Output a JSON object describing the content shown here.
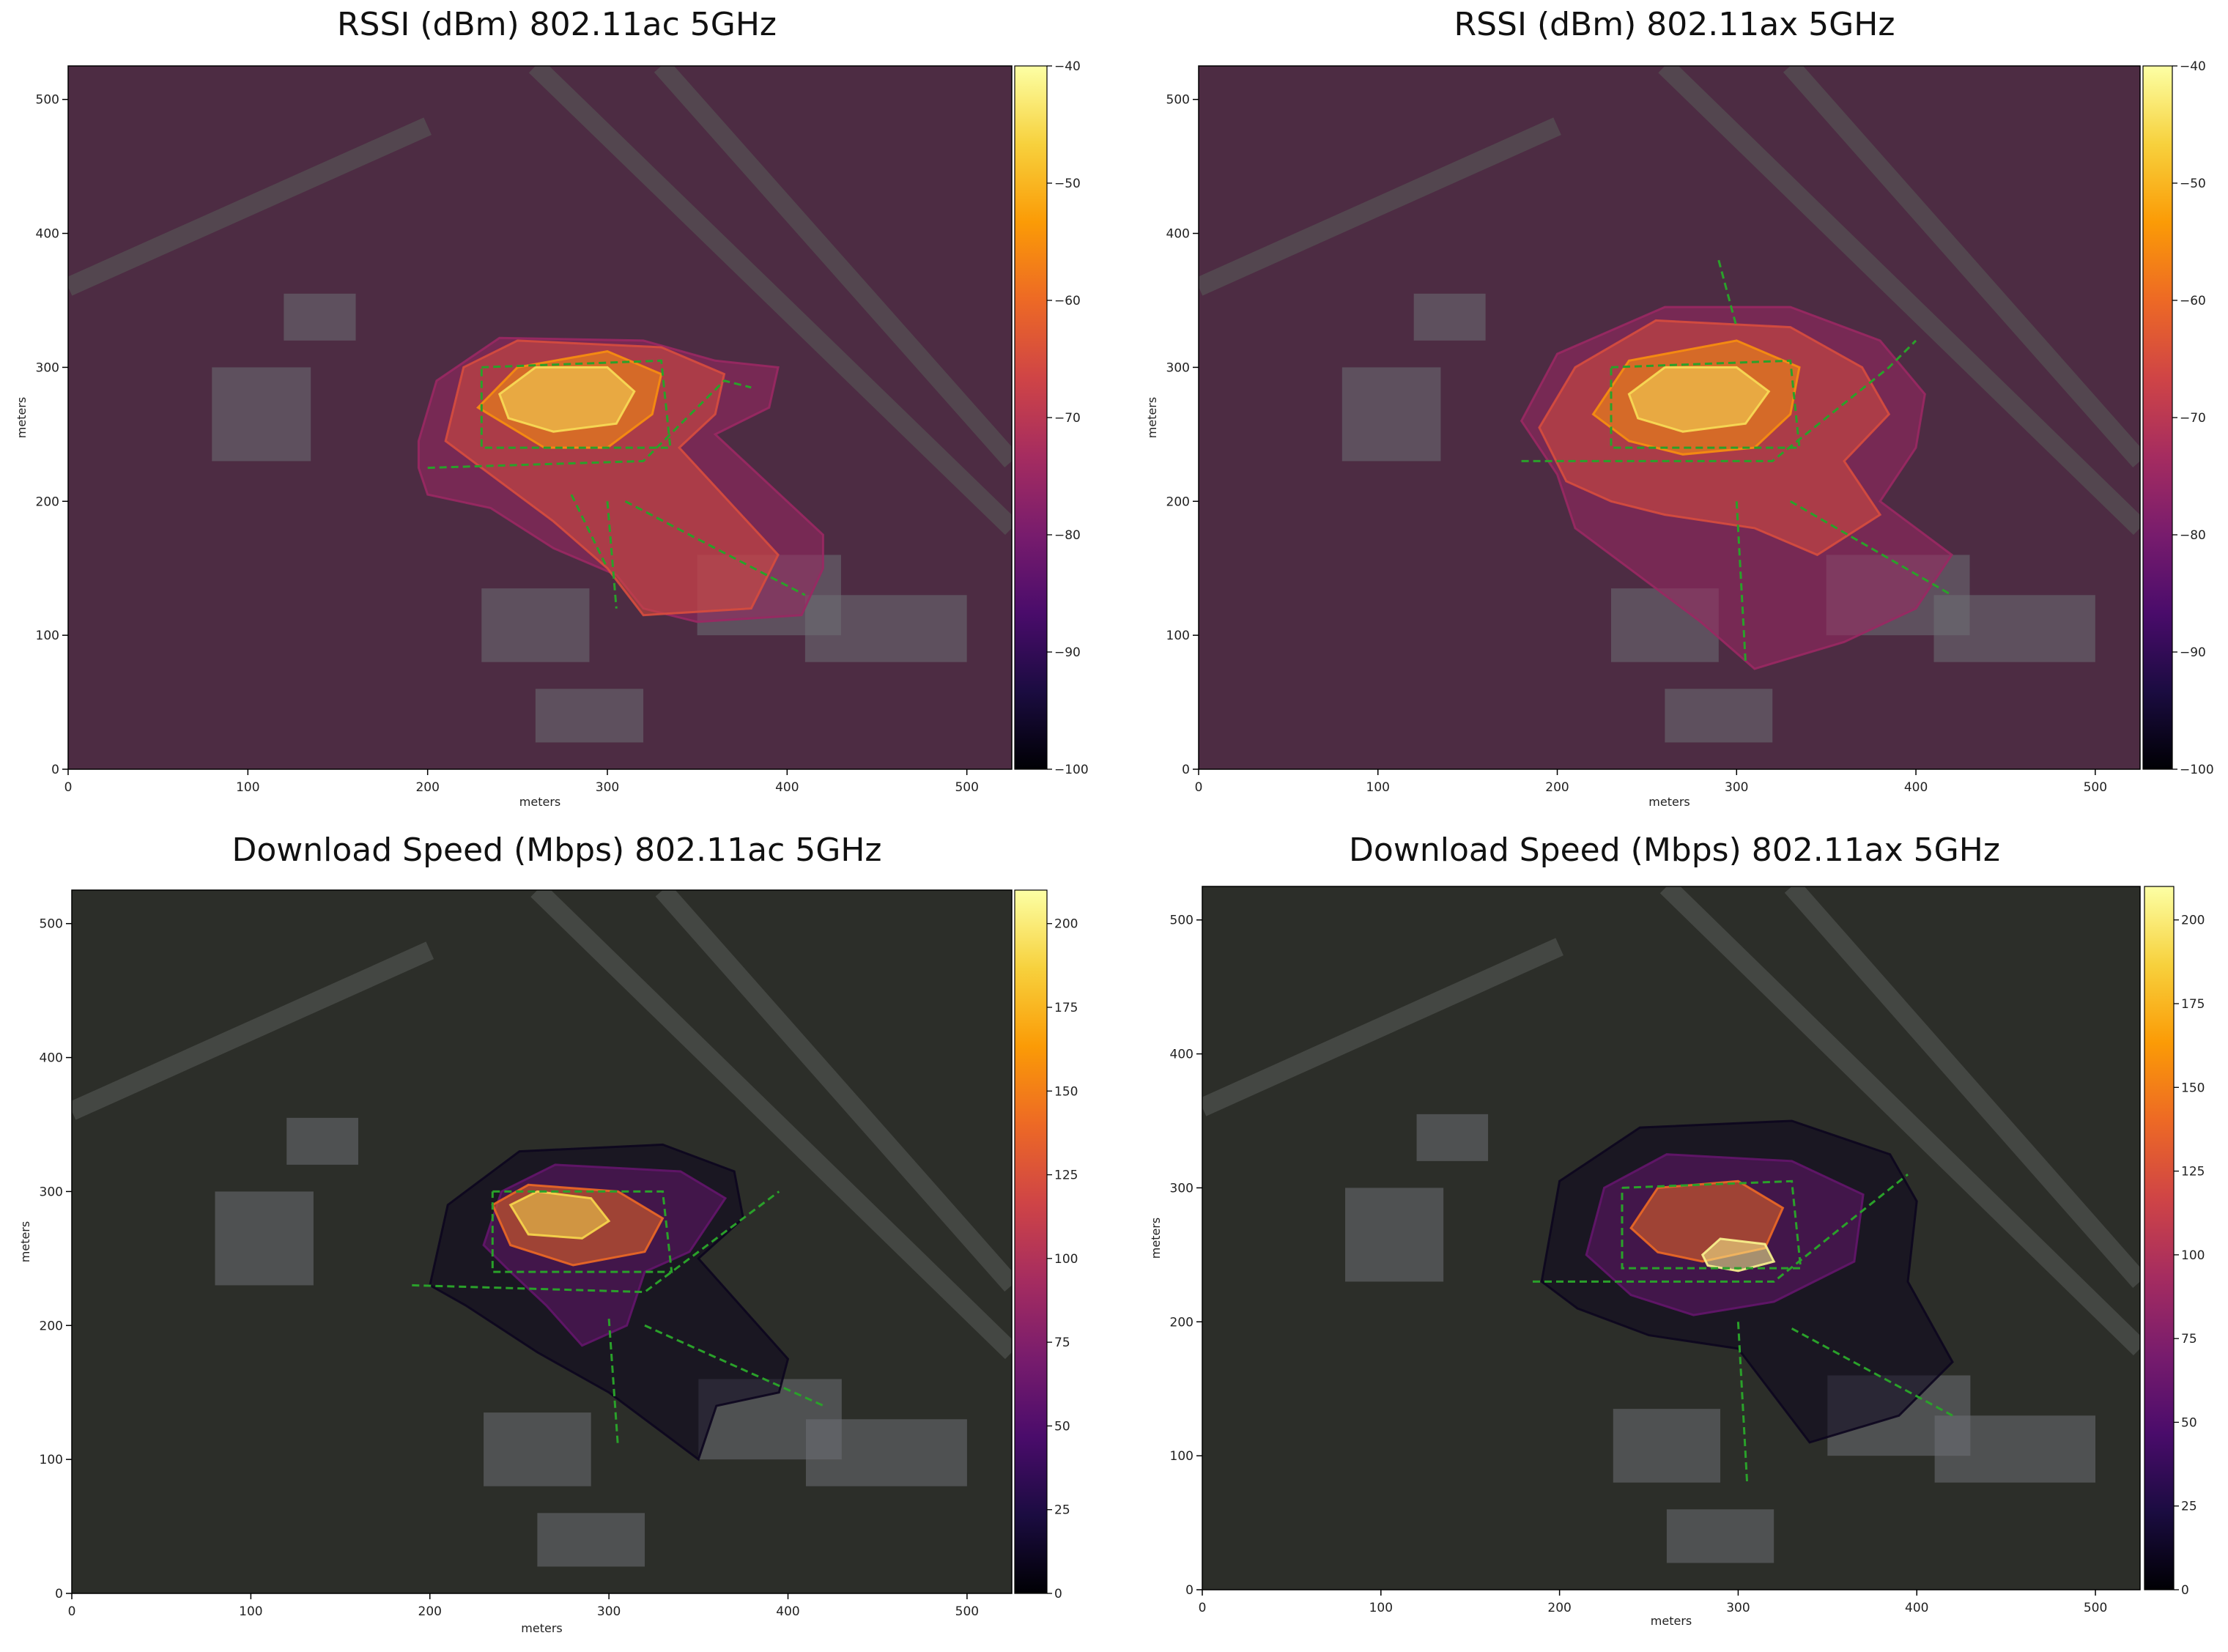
{
  "colors": {
    "colormap_stops": [
      "#000004",
      "#1b0c41",
      "#4a0c6b",
      "#781c6d",
      "#a52c60",
      "#cf4446",
      "#ed6925",
      "#fb9b06",
      "#f7d13d",
      "#fcffa4"
    ],
    "background_map": "#33352f",
    "measurement_path": "#2aa12a"
  },
  "chart_data": [
    {
      "type": "heatmap",
      "title": "RSSI (dBm) 802.11ac 5GHz",
      "xlabel": "meters",
      "ylabel": "meters",
      "xlim": [
        0,
        525
      ],
      "ylim": [
        0,
        525
      ],
      "x_ticks": [
        0,
        100,
        200,
        300,
        400,
        500
      ],
      "y_ticks": [
        0,
        100,
        200,
        300,
        400,
        500
      ],
      "colorbar": {
        "range": [
          -100,
          -40
        ],
        "ticks": [
          -40,
          -50,
          -60,
          -70,
          -80,
          -90,
          -100
        ]
      },
      "contours": [
        {
          "level": -75,
          "polygon": [
            [
              195,
              245
            ],
            [
              205,
              290
            ],
            [
              240,
              322
            ],
            [
              320,
              320
            ],
            [
              360,
              305
            ],
            [
              395,
              300
            ],
            [
              390,
              270
            ],
            [
              360,
              250
            ],
            [
              420,
              175
            ],
            [
              420,
              150
            ],
            [
              408,
              115
            ],
            [
              350,
              110
            ],
            [
              320,
              120
            ],
            [
              305,
              145
            ],
            [
              270,
              165
            ],
            [
              235,
              195
            ],
            [
              200,
              205
            ],
            [
              195,
              225
            ]
          ]
        },
        {
          "level": -65,
          "polygon": [
            [
              210,
              245
            ],
            [
              220,
              300
            ],
            [
              250,
              320
            ],
            [
              330,
              315
            ],
            [
              365,
              295
            ],
            [
              360,
              265
            ],
            [
              340,
              240
            ],
            [
              395,
              160
            ],
            [
              380,
              120
            ],
            [
              320,
              115
            ],
            [
              300,
              150
            ],
            [
              270,
              185
            ],
            [
              240,
              215
            ]
          ]
        },
        {
          "level": -55,
          "polygon": [
            [
              228,
              270
            ],
            [
              250,
              300
            ],
            [
              300,
              312
            ],
            [
              330,
              295
            ],
            [
              325,
              265
            ],
            [
              300,
              240
            ],
            [
              265,
              240
            ]
          ]
        },
        {
          "level": -45,
          "polygon": [
            [
              240,
              280
            ],
            [
              260,
              300
            ],
            [
              300,
              300
            ],
            [
              315,
              282
            ],
            [
              305,
              258
            ],
            [
              270,
              252
            ],
            [
              245,
              262
            ]
          ]
        }
      ],
      "paths": [
        [
          [
            230,
            300
          ],
          [
            330,
            305
          ],
          [
            335,
            240
          ],
          [
            230,
            240
          ],
          [
            230,
            300
          ]
        ],
        [
          [
            200,
            225
          ],
          [
            320,
            230
          ],
          [
            365,
            290
          ],
          [
            380,
            285
          ]
        ],
        [
          [
            300,
            200
          ],
          [
            305,
            120
          ]
        ],
        [
          [
            310,
            200
          ],
          [
            410,
            130
          ]
        ],
        [
          [
            280,
            205
          ],
          [
            300,
            150
          ]
        ]
      ]
    },
    {
      "type": "heatmap",
      "title": "RSSI (dBm) 802.11ax 5GHz",
      "xlabel": "meters",
      "ylabel": "meters",
      "xlim": [
        0,
        525
      ],
      "ylim": [
        0,
        525
      ],
      "x_ticks": [
        0,
        100,
        200,
        300,
        400,
        500
      ],
      "y_ticks": [
        0,
        100,
        200,
        300,
        400,
        500
      ],
      "colorbar": {
        "range": [
          -100,
          -40
        ],
        "ticks": [
          -40,
          -50,
          -60,
          -70,
          -80,
          -90,
          -100
        ]
      },
      "contours": [
        {
          "level": -75,
          "polygon": [
            [
              180,
              260
            ],
            [
              200,
              310
            ],
            [
              260,
              345
            ],
            [
              330,
              345
            ],
            [
              380,
              320
            ],
            [
              405,
              280
            ],
            [
              400,
              240
            ],
            [
              380,
              200
            ],
            [
              420,
              160
            ],
            [
              400,
              120
            ],
            [
              360,
              95
            ],
            [
              310,
              75
            ],
            [
              280,
              110
            ],
            [
              240,
              150
            ],
            [
              210,
              180
            ],
            [
              200,
              220
            ]
          ]
        },
        {
          "level": -65,
          "polygon": [
            [
              190,
              255
            ],
            [
              210,
              300
            ],
            [
              255,
              335
            ],
            [
              330,
              330
            ],
            [
              370,
              300
            ],
            [
              385,
              265
            ],
            [
              360,
              230
            ],
            [
              380,
              190
            ],
            [
              345,
              160
            ],
            [
              310,
              180
            ],
            [
              260,
              190
            ],
            [
              230,
              200
            ],
            [
              205,
              215
            ]
          ]
        },
        {
          "level": -55,
          "polygon": [
            [
              220,
              265
            ],
            [
              240,
              305
            ],
            [
              300,
              320
            ],
            [
              335,
              300
            ],
            [
              330,
              265
            ],
            [
              310,
              240
            ],
            [
              270,
              235
            ],
            [
              240,
              245
            ]
          ]
        },
        {
          "level": -45,
          "polygon": [
            [
              240,
              280
            ],
            [
              260,
              300
            ],
            [
              300,
              300
            ],
            [
              318,
              282
            ],
            [
              305,
              258
            ],
            [
              270,
              252
            ],
            [
              245,
              262
            ]
          ]
        }
      ],
      "paths": [
        [
          [
            230,
            300
          ],
          [
            330,
            305
          ],
          [
            335,
            240
          ],
          [
            230,
            240
          ],
          [
            230,
            300
          ]
        ],
        [
          [
            180,
            230
          ],
          [
            320,
            230
          ],
          [
            385,
            300
          ],
          [
            400,
            320
          ]
        ],
        [
          [
            300,
            200
          ],
          [
            305,
            80
          ]
        ],
        [
          [
            330,
            200
          ],
          [
            420,
            130
          ]
        ],
        [
          [
            290,
            380
          ],
          [
            300,
            330
          ]
        ]
      ]
    },
    {
      "type": "heatmap",
      "title": "Download Speed (Mbps) 802.11ac 5GHz",
      "xlabel": "meters",
      "ylabel": "meters",
      "xlim": [
        0,
        525
      ],
      "ylim": [
        0,
        525
      ],
      "x_ticks": [
        0,
        100,
        200,
        300,
        400,
        500
      ],
      "y_ticks": [
        0,
        100,
        200,
        300,
        400,
        500
      ],
      "colorbar": {
        "range": [
          0,
          210
        ],
        "ticks": [
          200,
          175,
          150,
          125,
          100,
          75,
          50,
          25,
          0
        ]
      },
      "contours": [
        {
          "level": 10,
          "polygon": [
            [
              200,
              230
            ],
            [
              210,
              290
            ],
            [
              250,
              330
            ],
            [
              330,
              335
            ],
            [
              370,
              315
            ],
            [
              375,
              280
            ],
            [
              350,
              250
            ],
            [
              400,
              175
            ],
            [
              395,
              150
            ],
            [
              360,
              140
            ],
            [
              350,
              100
            ],
            [
              330,
              120
            ],
            [
              300,
              150
            ],
            [
              260,
              180
            ],
            [
              220,
              215
            ]
          ]
        },
        {
          "level": 60,
          "polygon": [
            [
              230,
              260
            ],
            [
              240,
              300
            ],
            [
              270,
              320
            ],
            [
              340,
              315
            ],
            [
              365,
              295
            ],
            [
              345,
              255
            ],
            [
              320,
              240
            ],
            [
              310,
              200
            ],
            [
              285,
              185
            ],
            [
              265,
              215
            ],
            [
              245,
              240
            ]
          ]
        },
        {
          "level": 140,
          "polygon": [
            [
              235,
              290
            ],
            [
              255,
              305
            ],
            [
              305,
              300
            ],
            [
              330,
              280
            ],
            [
              320,
              255
            ],
            [
              280,
              245
            ],
            [
              245,
              260
            ]
          ]
        },
        {
          "level": 190,
          "polygon": [
            [
              245,
              290
            ],
            [
              260,
              300
            ],
            [
              290,
              295
            ],
            [
              300,
              278
            ],
            [
              285,
              265
            ],
            [
              255,
              268
            ]
          ]
        }
      ],
      "paths": [
        [
          [
            235,
            300
          ],
          [
            330,
            300
          ],
          [
            335,
            240
          ],
          [
            235,
            240
          ],
          [
            235,
            300
          ]
        ],
        [
          [
            190,
            230
          ],
          [
            320,
            225
          ],
          [
            395,
            300
          ]
        ],
        [
          [
            300,
            205
          ],
          [
            305,
            110
          ]
        ],
        [
          [
            320,
            200
          ],
          [
            420,
            140
          ]
        ]
      ]
    },
    {
      "type": "heatmap",
      "title": "Download Speed (Mbps) 802.11ax 5GHz",
      "xlabel": "meters",
      "ylabel": "meters",
      "xlim": [
        0,
        525
      ],
      "ylim": [
        0,
        525
      ],
      "x_ticks": [
        0,
        100,
        200,
        300,
        400,
        500
      ],
      "y_ticks": [
        0,
        100,
        200,
        300,
        400,
        500
      ],
      "colorbar": {
        "range": [
          0,
          210
        ],
        "ticks": [
          200,
          175,
          150,
          125,
          100,
          75,
          50,
          25,
          0
        ]
      },
      "contours": [
        {
          "level": 10,
          "polygon": [
            [
              190,
              230
            ],
            [
              200,
              305
            ],
            [
              245,
              345
            ],
            [
              330,
              350
            ],
            [
              385,
              325
            ],
            [
              400,
              290
            ],
            [
              395,
              230
            ],
            [
              420,
              170
            ],
            [
              390,
              130
            ],
            [
              340,
              110
            ],
            [
              300,
              180
            ],
            [
              250,
              190
            ],
            [
              210,
              210
            ]
          ]
        },
        {
          "level": 60,
          "polygon": [
            [
              215,
              250
            ],
            [
              225,
              300
            ],
            [
              260,
              325
            ],
            [
              330,
              320
            ],
            [
              370,
              295
            ],
            [
              365,
              245
            ],
            [
              320,
              215
            ],
            [
              275,
              205
            ],
            [
              240,
              220
            ]
          ]
        },
        {
          "level": 140,
          "polygon": [
            [
              240,
              270
            ],
            [
              255,
              300
            ],
            [
              300,
              305
            ],
            [
              325,
              285
            ],
            [
              315,
              255
            ],
            [
              280,
              245
            ],
            [
              255,
              252
            ]
          ]
        },
        {
          "level": 205,
          "polygon": [
            [
              280,
              250
            ],
            [
              290,
              262
            ],
            [
              315,
              258
            ],
            [
              320,
              245
            ],
            [
              300,
              238
            ],
            [
              283,
              242
            ]
          ]
        }
      ],
      "paths": [
        [
          [
            235,
            300
          ],
          [
            330,
            305
          ],
          [
            335,
            240
          ],
          [
            235,
            240
          ],
          [
            235,
            300
          ]
        ],
        [
          [
            185,
            230
          ],
          [
            320,
            230
          ],
          [
            395,
            310
          ]
        ],
        [
          [
            300,
            200
          ],
          [
            305,
            80
          ]
        ],
        [
          [
            330,
            195
          ],
          [
            420,
            130
          ]
        ]
      ]
    }
  ]
}
